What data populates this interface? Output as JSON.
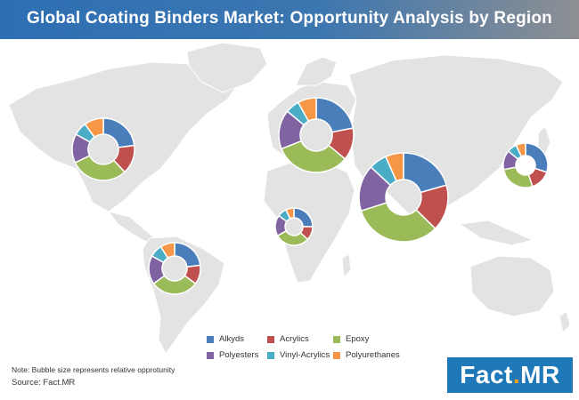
{
  "header": {
    "title": "Global Coating Binders Market: Opportunity Analysis by Region"
  },
  "chart_data": {
    "type": "pie",
    "title": "Global Coating Binders Market: Opportunity Analysis by Region",
    "categories": [
      "Alkyds",
      "Acrylics",
      "Epoxy",
      "Polyesters",
      "Vinyl-Acrylics",
      "Polyurethanes"
    ],
    "colors": [
      "#4a7ebb",
      "#c0504d",
      "#9bbb59",
      "#8064a2",
      "#4bacc6",
      "#f79646"
    ],
    "legend_position": "bottom-center",
    "series": [
      {
        "values": [
          23,
          15,
          30,
          15,
          7,
          10
        ]
      },
      {
        "values": [
          22,
          14,
          33,
          17,
          6,
          8
        ]
      },
      {
        "values": [
          22,
          18,
          35,
          18,
          7,
          7
        ]
      },
      {
        "values": [
          23,
          12,
          30,
          18,
          8,
          9
        ]
      },
      {
        "values": [
          25,
          12,
          30,
          18,
          8,
          7
        ]
      },
      {
        "values": [
          30,
          15,
          27,
          14,
          7,
          7
        ]
      }
    ]
  },
  "legend": [
    {
      "label": "Alkyds",
      "color": "#4a7ebb"
    },
    {
      "label": "Acrylics",
      "color": "#c0504d"
    },
    {
      "label": "Epoxy",
      "color": "#9bbb59"
    },
    {
      "label": "Polyesters",
      "color": "#8064a2"
    },
    {
      "label": "Vinyl-Acrylics",
      "color": "#4bacc6"
    },
    {
      "label": "Polyurethanes",
      "color": "#f79646"
    }
  ],
  "note": "Note: Bubble size represents relative opprotunity",
  "source": "Source: Fact.MR",
  "logo": {
    "text_main": "Fact",
    "text_dot": ".",
    "text_tail": "MR"
  }
}
